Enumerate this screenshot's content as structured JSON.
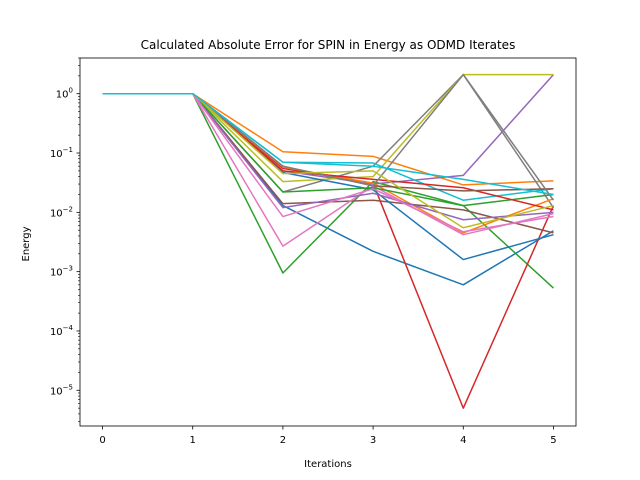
{
  "chart_data": {
    "type": "line",
    "title": "Calculated Absolute Error for SPIN in Energy as ODMD Iterates",
    "xlabel": "Iterations",
    "ylabel": "Energy",
    "yscale": "log",
    "xlim": [
      -0.25,
      5.25
    ],
    "ylim": [
      2.5e-06,
      4
    ],
    "grid": false,
    "x": [
      0,
      1,
      2,
      3,
      4,
      5
    ],
    "x_ticks": [
      "0",
      "1",
      "2",
      "3",
      "4",
      "5"
    ],
    "y_ticks": [
      {
        "value": 1e-05,
        "base": "10",
        "exp": "−5"
      },
      {
        "value": 0.0001,
        "base": "10",
        "exp": "−4"
      },
      {
        "value": 0.001,
        "base": "10",
        "exp": "−3"
      },
      {
        "value": 0.01,
        "base": "10",
        "exp": "−2"
      },
      {
        "value": 0.1,
        "base": "10",
        "exp": "−1"
      },
      {
        "value": 1,
        "base": "10",
        "exp": "0"
      }
    ],
    "series": [
      {
        "color": "#1f77b4",
        "values": [
          1,
          1,
          0.013,
          0.0022,
          0.0006,
          0.0049
        ]
      },
      {
        "color": "#ff7f0e",
        "values": [
          1,
          1,
          0.105,
          0.088,
          0.029,
          0.034
        ]
      },
      {
        "color": "#2ca02c",
        "values": [
          1,
          1,
          0.00095,
          0.033,
          0.013,
          0.00053
        ]
      },
      {
        "color": "#d62728",
        "values": [
          1,
          1,
          0.055,
          0.031,
          5e-06,
          0.013
        ]
      },
      {
        "color": "#9467bd",
        "values": [
          1,
          1,
          0.05,
          0.03,
          0.042,
          2.1
        ]
      },
      {
        "color": "#8c564b",
        "values": [
          1,
          1,
          0.014,
          0.016,
          0.011,
          0.0045
        ]
      },
      {
        "color": "#e377c2",
        "values": [
          1,
          1,
          0.0027,
          0.028,
          0.0042,
          0.0095
        ]
      },
      {
        "color": "#7f7f7f",
        "values": [
          1,
          1,
          0.022,
          0.06,
          2.1,
          0.012
        ]
      },
      {
        "color": "#bcbd22",
        "values": [
          1,
          1,
          0.033,
          0.04,
          2.1,
          2.1
        ]
      },
      {
        "color": "#17becf",
        "values": [
          1,
          1,
          0.07,
          0.068,
          0.016,
          0.025
        ]
      },
      {
        "color": "#1f77b4",
        "values": [
          1,
          1,
          0.047,
          0.024,
          0.0016,
          0.0042
        ]
      },
      {
        "color": "#ff7f0e",
        "values": [
          1,
          1,
          0.058,
          0.031,
          0.0045,
          0.017
        ]
      },
      {
        "color": "#2ca02c",
        "values": [
          1,
          1,
          0.022,
          0.026,
          0.013,
          0.02
        ]
      },
      {
        "color": "#d62728",
        "values": [
          1,
          1,
          0.05,
          0.036,
          0.026,
          0.011
        ]
      },
      {
        "color": "#9467bd",
        "values": [
          1,
          1,
          0.012,
          0.021,
          0.0075,
          0.01
        ]
      },
      {
        "color": "#8c564b",
        "values": [
          1,
          1,
          0.06,
          0.028,
          0.023,
          0.025
        ]
      },
      {
        "color": "#e377c2",
        "values": [
          1,
          1,
          0.0085,
          0.025,
          0.0047,
          0.0085
        ]
      },
      {
        "color": "#7f7f7f",
        "values": [
          1,
          1,
          0.06,
          0.028,
          2.1,
          0.016
        ]
      },
      {
        "color": "#bcbd22",
        "values": [
          1,
          1,
          0.045,
          0.05,
          0.0055,
          0.013
        ]
      },
      {
        "color": "#17becf",
        "values": [
          1,
          1,
          0.07,
          0.06,
          0.036,
          0.02
        ]
      }
    ]
  }
}
